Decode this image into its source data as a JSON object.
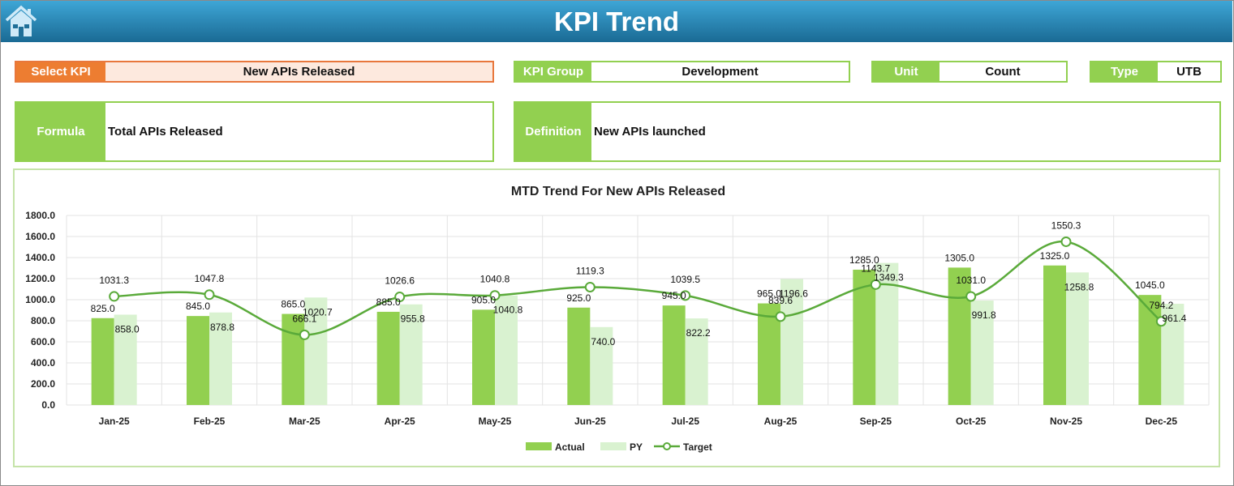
{
  "header": {
    "title": "KPI Trend",
    "home_icon": "home-icon"
  },
  "select_kpi": {
    "label": "Select KPI",
    "value": "New APIs Released"
  },
  "kpi_group": {
    "label": "KPI Group",
    "value": "Development"
  },
  "unit": {
    "label": "Unit",
    "value": "Count"
  },
  "type": {
    "label": "Type",
    "value": "UTB"
  },
  "formula": {
    "label": "Formula",
    "value": "Total APIs Released"
  },
  "definition": {
    "label": "Definition",
    "value": "New APIs launched"
  },
  "colors": {
    "actual": "#92d050",
    "py": "#d9f2d0",
    "target": "#5aaa3a",
    "accent_orange": "#ed7d31"
  },
  "chart_data": {
    "type": "bar",
    "title": "MTD Trend For New APIs Released",
    "categories": [
      "Jan-25",
      "Feb-25",
      "Mar-25",
      "Apr-25",
      "May-25",
      "Jun-25",
      "Jul-25",
      "Aug-25",
      "Sep-25",
      "Oct-25",
      "Nov-25",
      "Dec-25"
    ],
    "series": [
      {
        "name": "Actual",
        "type": "bar",
        "values": [
          825.0,
          845.0,
          865.0,
          885.0,
          905.0,
          925.0,
          945.0,
          965.0,
          1285.0,
          1305.0,
          1325.0,
          1045.0
        ]
      },
      {
        "name": "PY",
        "type": "bar",
        "values": [
          858.0,
          878.8,
          1020.7,
          955.8,
          1040.8,
          740.0,
          822.2,
          1196.6,
          1349.3,
          991.8,
          1258.8,
          961.4
        ]
      },
      {
        "name": "Target",
        "type": "line",
        "values": [
          1031.3,
          1047.8,
          666.1,
          1026.6,
          1040.8,
          1119.3,
          1039.5,
          839.6,
          1143.7,
          1031.0,
          1550.3,
          794.2
        ]
      }
    ],
    "yticks": [
      "0.0",
      "200.0",
      "400.0",
      "600.0",
      "800.0",
      "1000.0",
      "1200.0",
      "1400.0",
      "1600.0",
      "1800.0"
    ],
    "ylim": [
      0,
      1800
    ],
    "grid": true,
    "legend": "bottom"
  }
}
